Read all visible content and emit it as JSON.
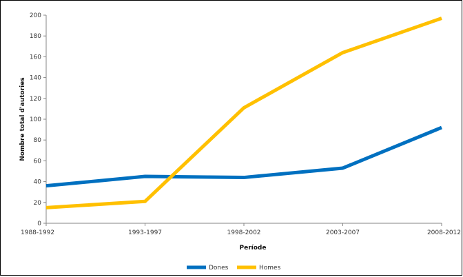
{
  "chart_data": {
    "type": "line",
    "title": "",
    "xlabel": "Període",
    "ylabel": "Nombre total d'autories",
    "categories": [
      "1988-1992",
      "1993-1997",
      "1998-2002",
      "2003-2007",
      "2008-2012"
    ],
    "ylim": [
      0,
      200
    ],
    "yticks": [
      0,
      20,
      40,
      60,
      80,
      100,
      120,
      140,
      160,
      180,
      200
    ],
    "grid": false,
    "legend_position": "bottom",
    "series": [
      {
        "name": "Dones",
        "color": "#0070C0",
        "values": [
          36,
          45,
          44,
          53,
          92
        ]
      },
      {
        "name": "Homes",
        "color": "#FFC000",
        "values": [
          15,
          21,
          111,
          164,
          197
        ]
      }
    ]
  }
}
